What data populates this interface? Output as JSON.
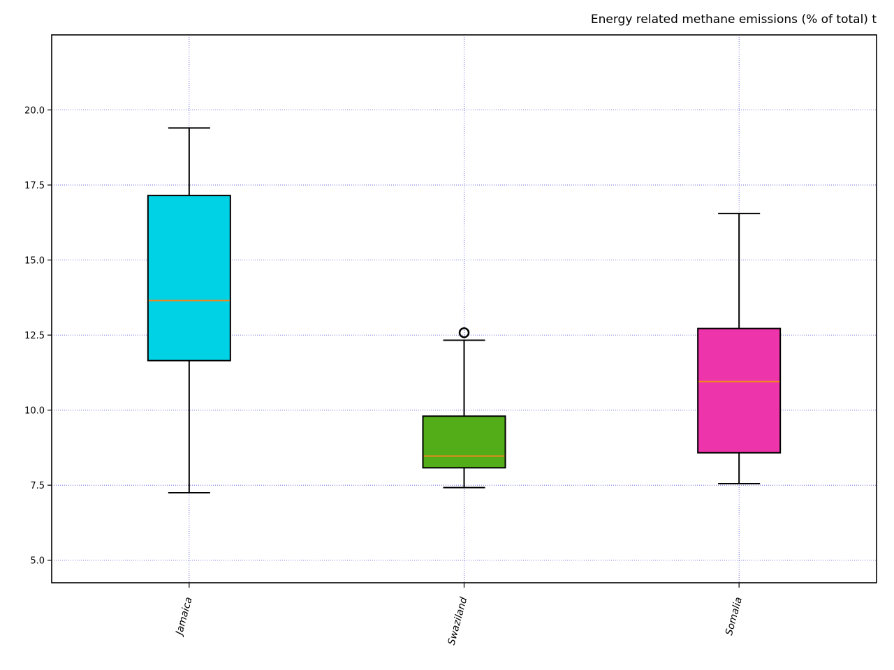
{
  "chart_data": {
    "type": "box",
    "title": "Energy related methane emissions (% of total) t",
    "xlabel": "",
    "ylabel": "",
    "ylim": [
      4.25,
      22.5
    ],
    "yticks": [
      5.0,
      7.5,
      10.0,
      12.5,
      15.0,
      17.5,
      20.0
    ],
    "ytick_labels": [
      "5.0",
      "7.5",
      "10.0",
      "12.5",
      "15.0",
      "17.5",
      "20.0"
    ],
    "grid": true,
    "categories": [
      "Jamaica",
      "Swaziland",
      "Somalia"
    ],
    "boxes": [
      {
        "name": "Jamaica",
        "whisker_low": 7.25,
        "q1": 11.65,
        "median": 13.65,
        "q3": 17.15,
        "whisker_high": 19.4,
        "outliers": [],
        "color": "#00d2e6"
      },
      {
        "name": "Swaziland",
        "whisker_low": 7.42,
        "q1": 8.08,
        "median": 8.47,
        "q3": 9.8,
        "whisker_high": 12.33,
        "outliers": [
          12.58
        ],
        "color": "#52ad18"
      },
      {
        "name": "Somalia",
        "whisker_low": 7.55,
        "q1": 8.58,
        "median": 10.95,
        "q3": 12.72,
        "whisker_high": 16.55,
        "outliers": [],
        "color": "#ee34ab"
      }
    ],
    "median_color": "#f0861e",
    "grid_color": "#4b4bd2"
  }
}
